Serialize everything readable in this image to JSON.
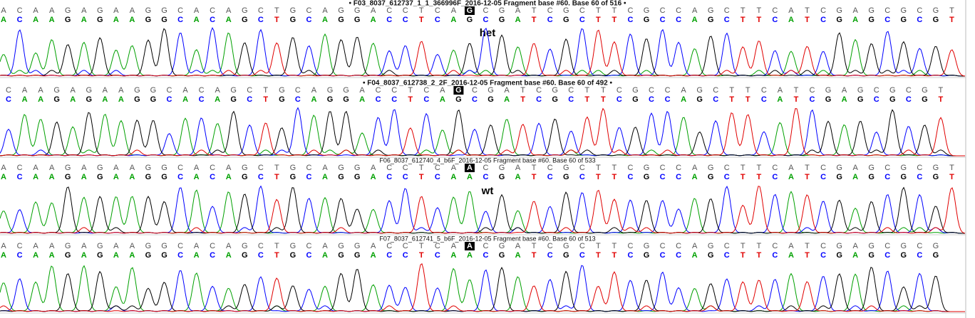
{
  "tracks": [
    {
      "title": "• F03_8037_612737_1_1_366996F_2016-12-05 Fragment base #60. Base 60 of 516 •",
      "bases": "ACAAGAGAAGGCACAGCTGCAGGACCTCAGCGATCGCTTCGCCAGCTTCATCGAGCGCGT",
      "called": "ACAAGAGAAGGCACAGCTGCAGGACCTCAGCGATCGCTTCGCCAGCTTCATCGAGCGCGT",
      "label": "het"
    },
    {
      "title": "• F04_8037_612738_2_2F_2016-12-05 Fragment base #60. Base 60 of 492 •",
      "bases": "CAAGAGAAGGCACAGCTGCAGGACCTCAGCGATCGCTTCGCCAGCTTCATCGAGCGCGT",
      "called": "CAAGAGAAGGCACAGCTGCAGGACCTCAGCGATCGCTTCGCCAGCTTCATCGAGCGCGT"
    },
    {
      "title": "F06_8037_612740_4_b6F_2016-12-05 Fragment base #60. Base 60 of 533",
      "bases": "ACAAGAGAAGGCACAGCTGCAGGACCTCAACGATCGCTTCGCCAGCTTCATCGAGCGCGT",
      "called": "ACAAGAGAAGGCACAGCTGCAGGACCTCAACGATCGCTTCGCCAGCTTCATCGAGCGCGT",
      "label": "wt"
    },
    {
      "title": "F07_8037_612741_5_b6F_2016-12-05 Fragment base #60. Base 60 of 513",
      "bases": "ACAAGAGAAGGCACAGCTGCAGGACCTCAACGATCGCTTCGCCAGCTTCATCGAGCGCG",
      "called": "ACAAGAGAAGGCACAGCTGCAGGACCTCAACGATCGCTTCGCCAGCTTCATCGAGCGCG"
    }
  ]
}
